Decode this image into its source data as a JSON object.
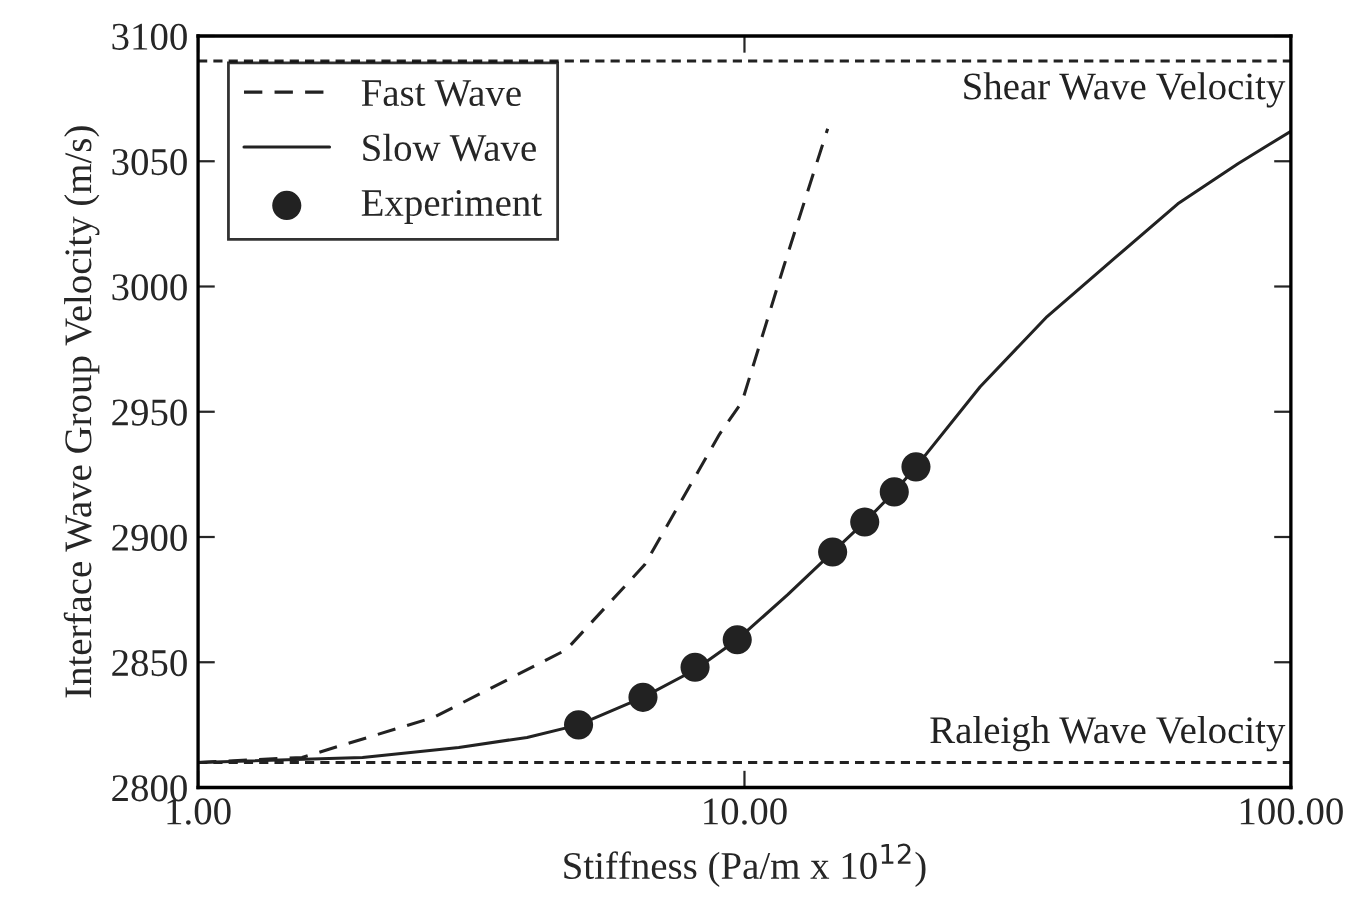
{
  "chart_data": {
    "type": "line",
    "xlabel": "Stiffness (Pa/m x 10$^{12}$)",
    "ylabel": "Interface Wave Group Velocity (m/s)",
    "log": "x",
    "xlim": [
      1,
      100
    ],
    "ylim": [
      2800,
      3100
    ],
    "xticks": [
      {
        "value": 1,
        "label": "1.00"
      },
      {
        "value": 10,
        "label": "10.00"
      },
      {
        "value": 100,
        "label": "100.00"
      }
    ],
    "yticks": [
      2800,
      2850,
      2900,
      2950,
      3000,
      3050,
      3100
    ],
    "grid": false,
    "legend": "top left",
    "series": [
      {
        "name": "Fast Wave",
        "line_style": "dashed",
        "color": "#222222",
        "x": [
          1,
          1.55,
          2.7,
          4.72,
          6.57,
          9.0,
          9.9,
          11.8,
          14.2
        ],
        "values": [
          2810,
          2812,
          2828,
          2855,
          2889,
          2941,
          2954,
          3008,
          3063
        ]
      },
      {
        "name": "Slow Wave",
        "line_style": "solid",
        "color": "#222222",
        "x": [
          1,
          2,
          3,
          4,
          4.97,
          6.52,
          8.12,
          9.7,
          12,
          14.5,
          16.6,
          18.8,
          20.6,
          27,
          35.8,
          48,
          62.1,
          80,
          100
        ],
        "values": [
          2810,
          2812,
          2816,
          2820,
          2825,
          2836,
          2847,
          2859,
          2877,
          2894,
          2906,
          2918,
          2928,
          2960,
          2988,
          3012,
          3033,
          3049,
          3062
        ]
      },
      {
        "name": "Experiment",
        "type": "scatter",
        "marker": "circle",
        "color": "#222222",
        "x": [
          4.97,
          6.52,
          8.12,
          9.7,
          14.5,
          16.6,
          18.8,
          20.6
        ],
        "values": [
          2825,
          2836,
          2848,
          2859,
          2894,
          2906,
          2918,
          2928
        ]
      }
    ],
    "ref_lines": [
      {
        "axis": "y",
        "value": 3090,
        "label": "Shear Wave Velocity",
        "color": "#222222",
        "line_style": "dotted"
      },
      {
        "axis": "y",
        "value": 2810,
        "label": "Raleigh Wave Velocity",
        "color": "#222222",
        "line_style": "dotted"
      }
    ]
  }
}
